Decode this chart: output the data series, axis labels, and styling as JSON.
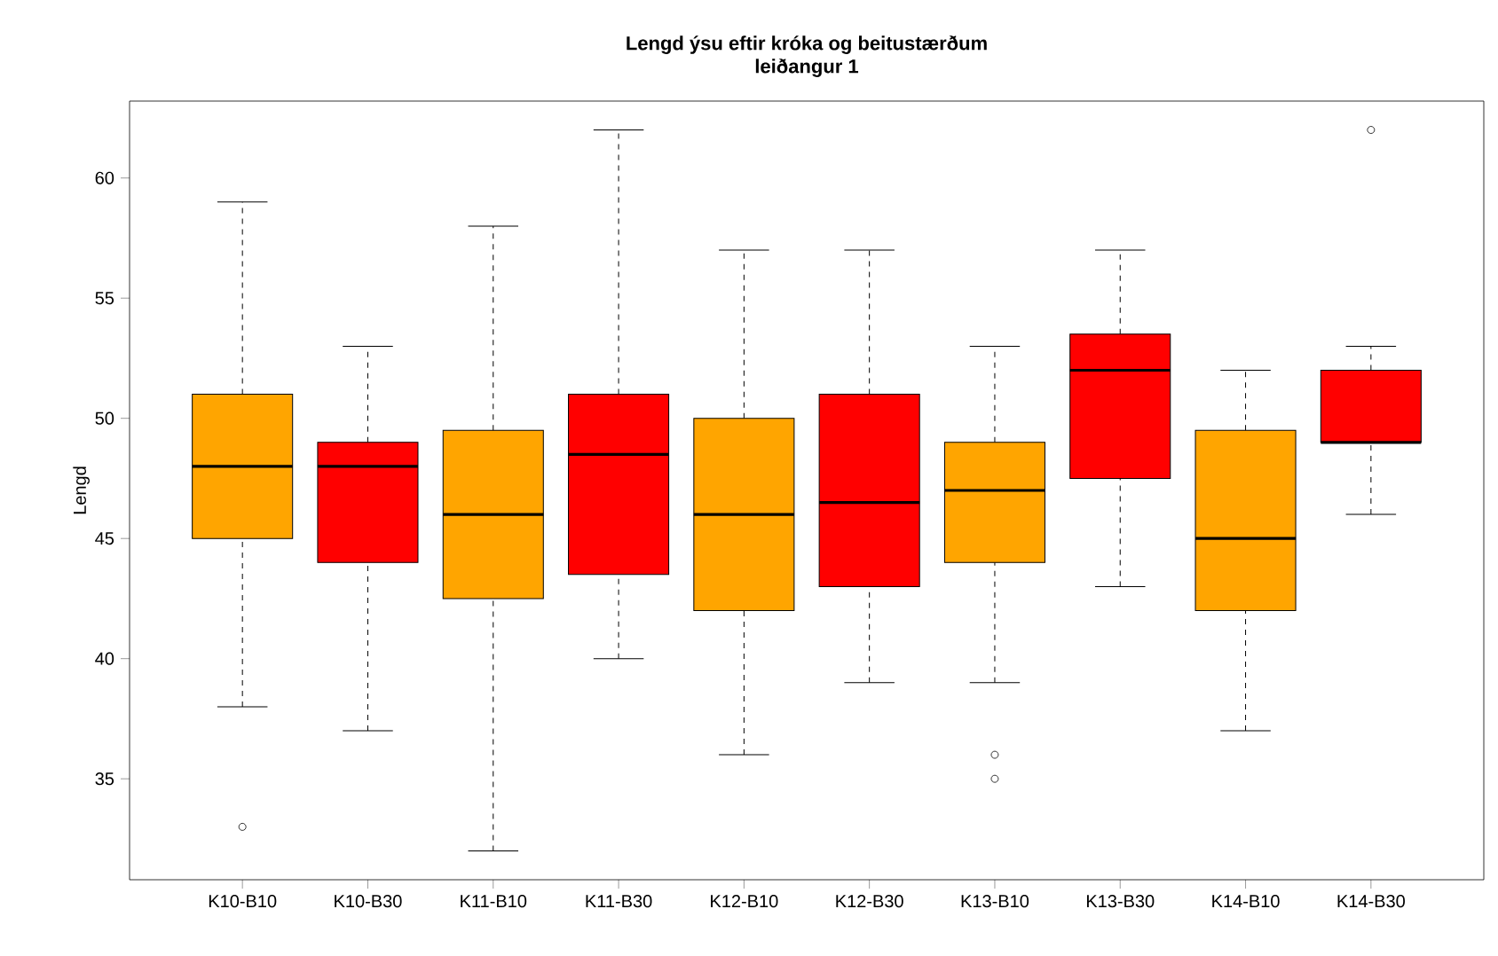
{
  "chart_data": {
    "type": "box",
    "title": "Lengd ýsu eftir króka og beitustærðum",
    "subtitle": "leiðangur 1",
    "ylabel": "Lengd",
    "categories": [
      "K10-B10",
      "K10-B30",
      "K11-B10",
      "K11-B30",
      "K12-B10",
      "K12-B30",
      "K13-B10",
      "K13-B30",
      "K14-B10",
      "K14-B30"
    ],
    "colors": [
      "#ffa500",
      "#ff0000",
      "#ffa500",
      "#ff0000",
      "#ffa500",
      "#ff0000",
      "#ffa500",
      "#ff0000",
      "#ffa500",
      "#ff0000"
    ],
    "boxes": [
      {
        "low": 38,
        "q1": 45,
        "median": 48,
        "q3": 51,
        "high": 59,
        "outliers": [
          33
        ]
      },
      {
        "low": 37,
        "q1": 44,
        "median": 48,
        "q3": 49,
        "high": 53
      },
      {
        "low": 32,
        "q1": 42.5,
        "median": 46,
        "q3": 49.5,
        "high": 58
      },
      {
        "low": 40,
        "q1": 43.5,
        "median": 48.5,
        "q3": 51,
        "high": 62
      },
      {
        "low": 36,
        "q1": 42,
        "median": 46,
        "q3": 50,
        "high": 57
      },
      {
        "low": 39,
        "q1": 43,
        "median": 46.5,
        "q3": 51,
        "high": 57
      },
      {
        "low": 39,
        "q1": 44,
        "median": 47,
        "q3": 49,
        "high": 53,
        "outliers": [
          36,
          35
        ]
      },
      {
        "low": 43,
        "q1": 47.5,
        "median": 52,
        "q3": 53.5,
        "high": 57
      },
      {
        "low": 37,
        "q1": 42,
        "median": 45,
        "q3": 49.5,
        "high": 52
      },
      {
        "low": 46,
        "q1": 49,
        "median": 49,
        "q3": 52,
        "high": 53,
        "outliers": [
          62
        ]
      }
    ],
    "ylim": [
      30.8,
      63.2
    ],
    "yticks": [
      35,
      40,
      45,
      50,
      55,
      60
    ],
    "grid": false
  }
}
